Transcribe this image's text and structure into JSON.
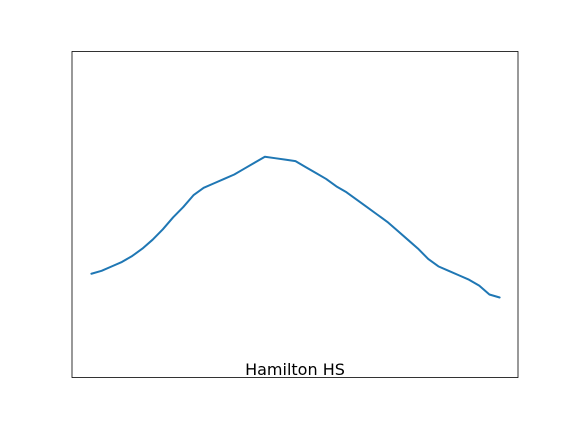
{
  "chart_data": {
    "type": "line",
    "title": "Hamilton HS",
    "xlabel": "",
    "ylabel": "",
    "grid": false,
    "axes_ticks": false,
    "x": [
      0,
      1,
      2,
      3,
      4,
      5,
      6,
      7,
      8,
      9,
      10,
      11,
      12,
      13,
      14,
      15,
      16,
      17,
      18,
      19,
      20,
      21,
      22,
      23,
      24,
      25,
      26,
      27,
      28,
      29,
      30,
      31,
      32,
      33,
      34,
      35,
      36,
      37,
      38,
      39,
      40
    ],
    "series": [
      {
        "color": "#1f77b4",
        "values": [
          0.35,
          0.36,
          0.375,
          0.39,
          0.41,
          0.435,
          0.465,
          0.5,
          0.54,
          0.575,
          0.615,
          0.64,
          0.655,
          0.67,
          0.685,
          0.705,
          0.725,
          0.745,
          0.74,
          0.735,
          0.73,
          0.71,
          0.69,
          0.67,
          0.645,
          0.625,
          0.6,
          0.575,
          0.55,
          0.525,
          0.495,
          0.465,
          0.435,
          0.4,
          0.375,
          0.36,
          0.345,
          0.33,
          0.31,
          0.28,
          0.27
        ]
      }
    ],
    "xlim": [
      -1.9,
      41.8
    ],
    "ylim": [
      0.0,
      1.1
    ]
  }
}
